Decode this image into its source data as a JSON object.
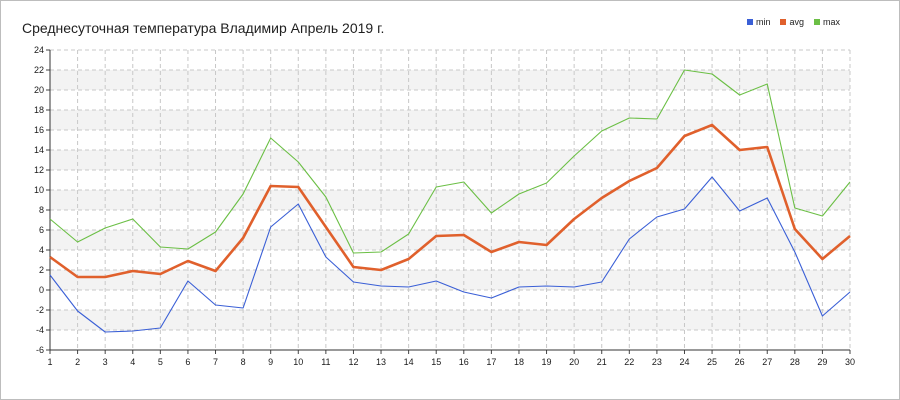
{
  "chart_data": {
    "type": "line",
    "title": "Среднесуточная температура Владимир  Апрель 2019 г.",
    "xlabel": "",
    "ylabel": "",
    "x": [
      1,
      2,
      3,
      4,
      5,
      6,
      7,
      8,
      9,
      10,
      11,
      12,
      13,
      14,
      15,
      16,
      17,
      18,
      19,
      20,
      21,
      22,
      23,
      24,
      25,
      26,
      27,
      28,
      29,
      30
    ],
    "xlim": [
      1,
      30
    ],
    "ylim": [
      -6,
      24
    ],
    "yticks": [
      -6,
      -4,
      -2,
      0,
      2,
      4,
      6,
      8,
      10,
      12,
      14,
      16,
      18,
      20,
      22,
      24
    ],
    "grid": true,
    "legend_position": "top-right",
    "series": [
      {
        "name": "min",
        "color": "#3a5fd6",
        "values": [
          1.5,
          -2.1,
          -4.2,
          -4.1,
          -3.8,
          0.9,
          -1.5,
          -1.8,
          6.3,
          8.6,
          3.3,
          0.8,
          0.4,
          0.3,
          0.9,
          -0.2,
          -0.8,
          0.3,
          0.4,
          0.3,
          0.8,
          5.1,
          7.3,
          8.1,
          11.3,
          7.9,
          9.2,
          3.8,
          -2.6,
          -0.2
        ]
      },
      {
        "name": "avg",
        "color": "#e0602c",
        "values": [
          3.3,
          1.3,
          1.3,
          1.9,
          1.6,
          2.9,
          1.9,
          5.2,
          10.4,
          10.3,
          6.3,
          2.3,
          2.0,
          3.1,
          5.4,
          5.5,
          3.8,
          4.8,
          4.5,
          7.1,
          9.2,
          10.9,
          12.2,
          15.4,
          16.5,
          14.0,
          14.3,
          6.1,
          3.1,
          5.4
        ]
      },
      {
        "name": "max",
        "color": "#6bbf45",
        "values": [
          7.1,
          4.8,
          6.2,
          7.1,
          4.3,
          4.1,
          5.8,
          9.6,
          15.2,
          12.8,
          9.3,
          3.7,
          3.8,
          5.6,
          10.3,
          10.8,
          7.7,
          9.6,
          10.7,
          13.4,
          15.9,
          17.2,
          17.1,
          22.0,
          21.6,
          19.5,
          20.6,
          8.2,
          7.4,
          10.8
        ]
      }
    ]
  }
}
